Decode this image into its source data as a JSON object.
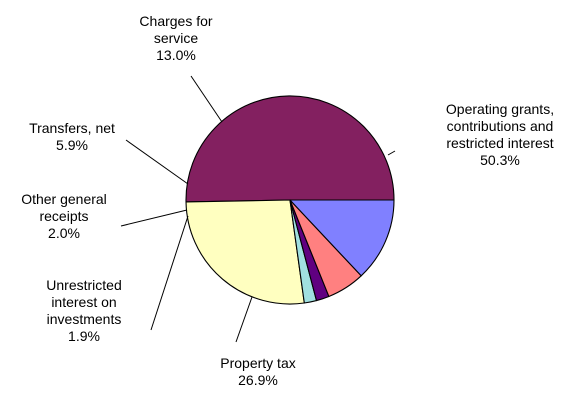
{
  "chart_data": {
    "type": "pie",
    "start_angle_deg": 0,
    "direction": "counterclockwise",
    "slices": [
      {
        "label": [
          "Operating grants,",
          "contributions and",
          "restricted interest"
        ],
        "pct_text": "50.3%",
        "value": 50.3,
        "color": "#832060"
      },
      {
        "label": [
          "Property tax"
        ],
        "pct_text": "26.9%",
        "value": 26.9,
        "color": "#FFFFC0"
      },
      {
        "label": [
          "Unrestricted",
          "interest on",
          "investments"
        ],
        "pct_text": "1.9%",
        "value": 1.9,
        "color": "#A0E0E0"
      },
      {
        "label": [
          "Other general",
          "receipts"
        ],
        "pct_text": "2.0%",
        "value": 2.0,
        "color": "#600080"
      },
      {
        "label": [
          "Transfers, net"
        ],
        "pct_text": "5.9%",
        "value": 5.9,
        "color": "#FF8080"
      },
      {
        "label": [
          "Charges for",
          "service"
        ],
        "pct_text": "13.0%",
        "value": 13.0,
        "color": "#8080FF"
      }
    ]
  }
}
